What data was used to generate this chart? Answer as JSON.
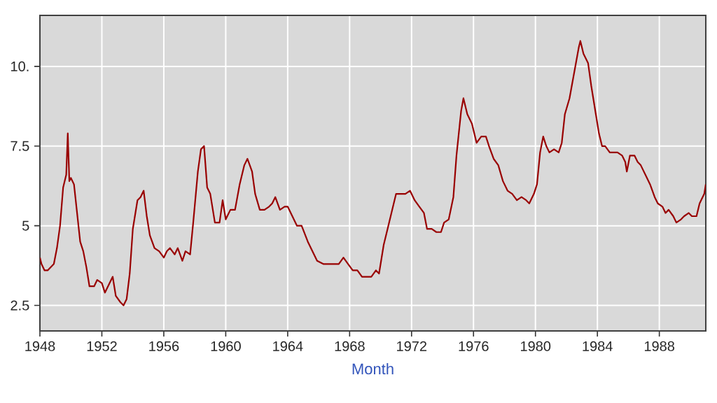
{
  "chart_data": {
    "type": "line",
    "xlabel": "Month",
    "x": [
      1948.0,
      1948.1,
      1948.3,
      1948.5,
      1948.9,
      1949.1,
      1949.3,
      1949.5,
      1949.7,
      1949.8,
      1949.9,
      1950.0,
      1950.2,
      1950.4,
      1950.6,
      1950.8,
      1951.0,
      1951.2,
      1951.5,
      1951.7,
      1952.0,
      1952.2,
      1952.5,
      1952.7,
      1952.9,
      1953.2,
      1953.4,
      1953.6,
      1953.8,
      1954.0,
      1954.3,
      1954.5,
      1954.7,
      1954.9,
      1955.1,
      1955.4,
      1955.7,
      1956.0,
      1956.2,
      1956.4,
      1956.7,
      1956.9,
      1957.2,
      1957.4,
      1957.7,
      1957.9,
      1958.2,
      1958.4,
      1958.6,
      1958.8,
      1959.0,
      1959.3,
      1959.6,
      1959.8,
      1960.0,
      1960.3,
      1960.6,
      1960.9,
      1961.2,
      1961.4,
      1961.7,
      1961.9,
      1962.2,
      1962.5,
      1962.8,
      1963.0,
      1963.2,
      1963.5,
      1963.8,
      1964.0,
      1964.3,
      1964.6,
      1964.9,
      1965.3,
      1965.6,
      1965.9,
      1966.3,
      1966.6,
      1966.9,
      1967.3,
      1967.6,
      1967.9,
      1968.2,
      1968.5,
      1968.8,
      1969.1,
      1969.4,
      1969.7,
      1969.9,
      1970.2,
      1970.5,
      1970.8,
      1971.0,
      1971.3,
      1971.6,
      1971.9,
      1972.2,
      1972.5,
      1972.8,
      1973.0,
      1973.3,
      1973.6,
      1973.9,
      1974.1,
      1974.4,
      1974.7,
      1974.9,
      1975.2,
      1975.35,
      1975.6,
      1975.9,
      1976.2,
      1976.5,
      1976.8,
      1977.0,
      1977.3,
      1977.6,
      1977.9,
      1978.2,
      1978.5,
      1978.8,
      1979.1,
      1979.4,
      1979.6,
      1979.9,
      1980.1,
      1980.3,
      1980.5,
      1980.7,
      1980.9,
      1981.2,
      1981.5,
      1981.7,
      1981.9,
      1982.2,
      1982.5,
      1982.8,
      1982.9,
      1983.1,
      1983.4,
      1983.6,
      1983.9,
      1984.1,
      1984.3,
      1984.5,
      1984.8,
      1985.1,
      1985.3,
      1985.6,
      1985.8,
      1985.9,
      1986.1,
      1986.4,
      1986.6,
      1986.8,
      1987.1,
      1987.4,
      1987.7,
      1987.9,
      1988.2,
      1988.4,
      1988.6,
      1988.9,
      1989.1,
      1989.4,
      1989.6,
      1989.9,
      1990.1,
      1990.4,
      1990.6,
      1990.9,
      1991.0
    ],
    "values": [
      4.0,
      3.8,
      3.6,
      3.6,
      3.8,
      4.3,
      5.0,
      6.2,
      6.6,
      7.9,
      6.4,
      6.5,
      6.3,
      5.4,
      4.5,
      4.2,
      3.7,
      3.1,
      3.1,
      3.3,
      3.2,
      2.9,
      3.2,
      3.4,
      2.8,
      2.6,
      2.5,
      2.7,
      3.5,
      4.9,
      5.8,
      5.9,
      6.1,
      5.3,
      4.7,
      4.3,
      4.2,
      4.0,
      4.2,
      4.3,
      4.1,
      4.3,
      3.9,
      4.2,
      4.1,
      5.1,
      6.7,
      7.4,
      7.5,
      6.2,
      6.0,
      5.1,
      5.1,
      5.8,
      5.2,
      5.5,
      5.5,
      6.3,
      6.9,
      7.1,
      6.7,
      6.0,
      5.5,
      5.5,
      5.6,
      5.7,
      5.9,
      5.5,
      5.6,
      5.6,
      5.3,
      5.0,
      5.0,
      4.5,
      4.2,
      3.9,
      3.8,
      3.8,
      3.8,
      3.8,
      4.0,
      3.8,
      3.6,
      3.6,
      3.4,
      3.4,
      3.4,
      3.6,
      3.5,
      4.4,
      5.0,
      5.6,
      6.0,
      6.0,
      6.0,
      6.1,
      5.8,
      5.6,
      5.4,
      4.9,
      4.9,
      4.8,
      4.8,
      5.1,
      5.2,
      5.9,
      7.2,
      8.6,
      9.0,
      8.5,
      8.2,
      7.6,
      7.8,
      7.8,
      7.5,
      7.1,
      6.9,
      6.4,
      6.1,
      6.0,
      5.8,
      5.9,
      5.8,
      5.7,
      6.0,
      6.3,
      7.3,
      7.8,
      7.5,
      7.3,
      7.4,
      7.3,
      7.6,
      8.5,
      9.0,
      9.8,
      10.6,
      10.8,
      10.4,
      10.1,
      9.4,
      8.5,
      7.9,
      7.5,
      7.5,
      7.3,
      7.3,
      7.3,
      7.2,
      7.0,
      6.7,
      7.2,
      7.2,
      7.0,
      6.9,
      6.6,
      6.3,
      5.9,
      5.7,
      5.6,
      5.4,
      5.5,
      5.3,
      5.1,
      5.2,
      5.3,
      5.4,
      5.3,
      5.3,
      5.7,
      6.0,
      6.3
    ],
    "color": "#990000",
    "xlim": [
      1948,
      1991
    ],
    "ylim": [
      1.7,
      11.6
    ],
    "xticks": [
      1948,
      1952,
      1956,
      1960,
      1964,
      1968,
      1972,
      1976,
      1980,
      1984,
      1988
    ],
    "yticks": [
      {
        "value": 2.5,
        "label": "2.5"
      },
      {
        "value": 5,
        "label": "5"
      },
      {
        "value": 7.5,
        "label": "7.5"
      },
      {
        "value": 10,
        "label": "10."
      }
    ],
    "grid": true
  }
}
